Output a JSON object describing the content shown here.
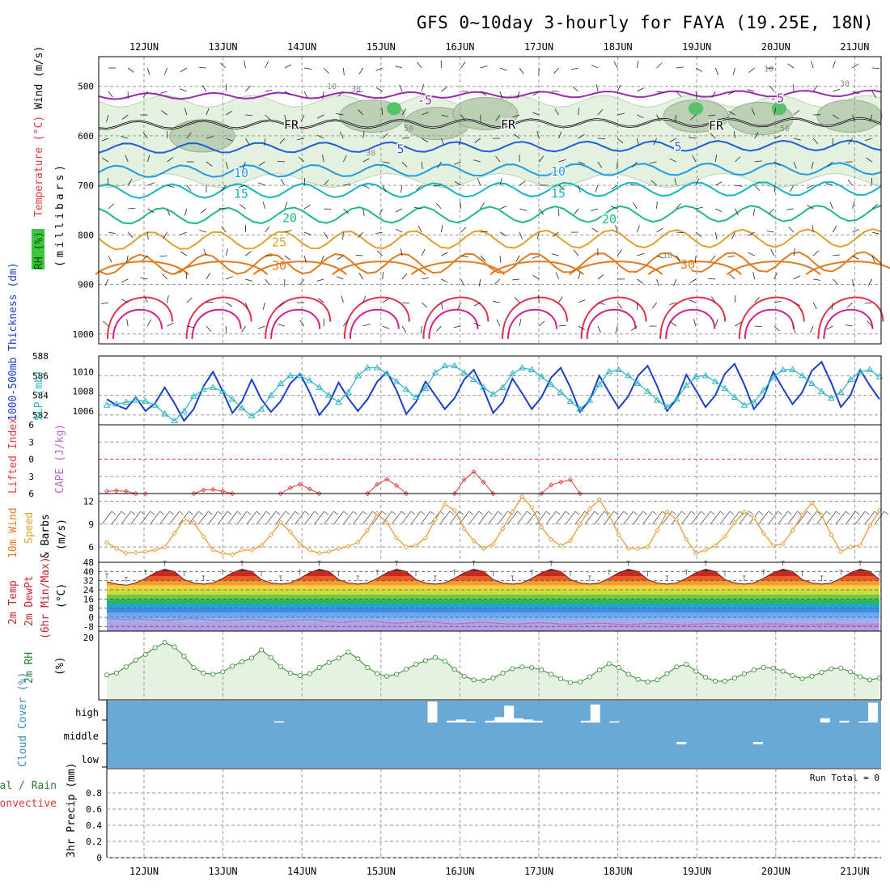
{
  "title": "GFS 0~10day 3-hourly for FAYA (19.25E, 18N)",
  "dates": [
    "12JUN",
    "13JUN",
    "14JUN",
    "15JUN",
    "16JUN",
    "17JUN",
    "18JUN",
    "19JUN",
    "20JUN",
    "21JUN"
  ],
  "run_total": "Run Total = 0",
  "chart_data": [
    {
      "panel": "upper-air",
      "type": "contour",
      "ylabel_parts": [
        {
          "text": "RH (%)",
          "color": "#2e7d32"
        },
        {
          "text": "Temperature (°C)",
          "color": "#e53935"
        },
        {
          "text": "Wind (m/s)",
          "color": "#000000"
        },
        {
          "text": "(millibars)",
          "color": "#000000"
        }
      ],
      "y_ticks": [
        500,
        600,
        700,
        800,
        900,
        1000
      ],
      "ylim": [
        440,
        1020
      ],
      "isotherm_labels": [
        "-5",
        "FR",
        "5",
        "10",
        "15",
        "20",
        "25",
        "30"
      ],
      "isotherms": [
        {
          "label": "-5",
          "level": 520,
          "color": "#9c27b0"
        },
        {
          "label": "FR",
          "level": 578,
          "color": "#000000"
        },
        {
          "label": "5",
          "level": 625,
          "color": "#1e5fd6"
        },
        {
          "label": "10",
          "level": 672,
          "color": "#1e9be3"
        },
        {
          "label": "15",
          "level": 712,
          "color": "#14b4c4"
        },
        {
          "label": "20",
          "level": 762,
          "color": "#1fb887"
        },
        {
          "label": "25",
          "level": 812,
          "color": "#e0a12a"
        },
        {
          "label": "30",
          "level": 860,
          "color": "#e07b20"
        }
      ],
      "rh_labels": [
        "10",
        "30",
        "50"
      ]
    },
    {
      "panel": "thickness-slp",
      "type": "line",
      "ylabel_left": "1000-500mb Thickness (dm)",
      "ylabel_right": "SLP (mb)",
      "left_ticks": [
        582,
        584,
        586,
        588
      ],
      "right_ticks": [
        1006,
        1008,
        1010
      ],
      "x_hours": [
        0,
        3,
        6,
        9,
        12,
        15,
        18,
        21,
        24,
        27,
        30,
        33,
        36,
        39,
        42,
        45,
        48,
        51,
        54,
        57,
        60,
        63,
        66,
        69,
        72,
        75,
        78,
        81,
        84,
        87,
        90,
        93,
        96,
        99,
        102,
        105,
        108,
        111,
        114,
        117,
        120,
        123,
        126,
        129,
        132,
        135,
        138,
        141,
        144,
        147,
        150,
        153,
        156,
        159,
        162,
        165,
        168,
        171,
        174,
        177,
        180,
        183,
        186,
        189,
        192,
        195,
        198,
        201,
        204,
        207,
        210,
        213,
        216,
        219,
        222,
        225,
        228,
        231,
        234,
        237,
        240
      ],
      "series": [
        {
          "name": "thickness",
          "color": "#1b3fc9",
          "values": [
            583.6,
            583.0,
            582.6,
            583.8,
            582.4,
            583.2,
            584.8,
            583.2,
            581.4,
            582.6,
            584.9,
            586.4,
            584.4,
            582.2,
            583.4,
            585.6,
            583.6,
            582.3,
            583.4,
            585.2,
            586.2,
            584.3,
            582.0,
            583.2,
            585.3,
            583.7,
            582.4,
            583.6,
            585.4,
            586.4,
            584.5,
            582.1,
            583.3,
            585.4,
            584.0,
            582.6,
            583.7,
            585.6,
            586.6,
            584.6,
            582.2,
            583.3,
            585.7,
            584.2,
            582.6,
            583.8,
            585.8,
            586.8,
            584.8,
            582.3,
            583.5,
            586.0,
            584.3,
            582.7,
            583.9,
            586.0,
            587.0,
            584.9,
            582.4,
            583.6,
            586.1,
            584.5,
            582.8,
            584.0,
            586.2,
            587.2,
            585.1,
            582.6,
            583.8,
            586.4,
            584.7,
            583.1,
            584.3,
            586.5,
            587.4,
            585.3,
            582.8,
            584.0,
            586.6,
            585.0,
            583.6
          ]
        },
        {
          "name": "SLP",
          "color": "#2bb5c4",
          "values": [
            1006.6,
            1006.7,
            1006.9,
            1007.1,
            1007.0,
            1006.6,
            1005.7,
            1005.0,
            1006.0,
            1007.5,
            1008.2,
            1008.4,
            1008.0,
            1007.2,
            1006.3,
            1005.5,
            1006.2,
            1007.6,
            1008.8,
            1009.6,
            1009.6,
            1009.1,
            1008.4,
            1007.6,
            1006.9,
            1007.9,
            1009.6,
            1010.4,
            1010.4,
            1009.8,
            1009.0,
            1008.2,
            1007.4,
            1008.3,
            1009.9,
            1010.6,
            1010.6,
            1009.9,
            1009.2,
            1008.4,
            1007.7,
            1008.4,
            1009.8,
            1010.4,
            1010.2,
            1009.5,
            1008.7,
            1007.9,
            1007.0,
            1006.2,
            1007.1,
            1008.7,
            1010.0,
            1010.2,
            1009.6,
            1008.8,
            1008.0,
            1007.1,
            1006.4,
            1007.2,
            1008.6,
            1009.5,
            1009.6,
            1009.0,
            1008.3,
            1007.4,
            1006.6,
            1006.9,
            1008.1,
            1009.4,
            1010.2,
            1010.2,
            1009.6,
            1008.8,
            1008.0,
            1007.3,
            1007.9,
            1009.2,
            1010.0,
            1010.2,
            1009.5
          ]
        }
      ]
    },
    {
      "panel": "lifted-index-cape",
      "type": "line",
      "ylabel_parts": [
        {
          "text": "Lifted Index",
          "color": "#e53935"
        },
        {
          "text": "CAPE (J/kg)",
          "color": "#ba68c8"
        }
      ],
      "y_ticks": [
        -6,
        -3,
        0,
        3,
        6
      ],
      "ylim": [
        -6,
        6
      ],
      "series": [
        {
          "name": "Lifted Index",
          "color": "#e53935",
          "x_hours": [
            0,
            3,
            6,
            9,
            12,
            27,
            30,
            33,
            36,
            39,
            54,
            57,
            60,
            63,
            66,
            81,
            84,
            87,
            90,
            93,
            108,
            111,
            114,
            117,
            120,
            135,
            138,
            141,
            144,
            147
          ],
          "values": [
            5.6,
            5.5,
            5.6,
            6.0,
            6.0,
            6.0,
            5.4,
            5.3,
            5.6,
            6.0,
            6.0,
            5.0,
            4.4,
            5.2,
            6.0,
            6.0,
            4.4,
            3.5,
            4.6,
            6.0,
            6.0,
            3.6,
            2.2,
            4.0,
            6.0,
            6.0,
            4.5,
            4.0,
            3.6,
            6.0
          ]
        }
      ]
    },
    {
      "panel": "10m-wind",
      "type": "line",
      "ylabel_parts": [
        {
          "text": "10m Wind",
          "color": "#e07b20"
        },
        {
          "text": "Speed",
          "color": "#e0a12a"
        },
        {
          "text": "& Barbs",
          "color": "#000000"
        },
        {
          "text": "(m/s)",
          "color": "#000000"
        }
      ],
      "y_ticks": [
        6,
        9,
        12
      ],
      "ylim": [
        4,
        13
      ],
      "series": [
        {
          "name": "wind speed",
          "color": "#e8952a",
          "values": [
            6.6,
            5.8,
            5.2,
            5.3,
            5.4,
            5.6,
            6.0,
            7.8,
            9.6,
            9.2,
            7.4,
            5.6,
            5.2,
            5.0,
            5.6,
            5.6,
            6.2,
            7.6,
            9.2,
            8.0,
            6.4,
            5.6,
            5.2,
            5.4,
            5.8,
            6.1,
            6.6,
            8.2,
            10.4,
            9.2,
            7.2,
            6.0,
            6.2,
            7.2,
            9.6,
            11.6,
            10.8,
            8.4,
            6.8,
            5.8,
            6.4,
            8.4,
            10.6,
            12.6,
            11.2,
            8.6,
            7.0,
            6.2,
            6.8,
            9.0,
            11.0,
            12.2,
            10.2,
            7.6,
            5.8,
            5.8,
            6.0,
            8.2,
            10.6,
            9.6,
            7.0,
            5.2,
            5.6,
            6.2,
            7.4,
            9.2,
            10.6,
            9.8,
            7.8,
            6.2,
            6.4,
            8.2,
            10.2,
            11.8,
            10.2,
            7.6,
            5.4,
            6.0,
            6.2,
            8.8,
            10.8
          ]
        }
      ]
    },
    {
      "panel": "2m-temp",
      "type": "area",
      "ylabel_parts": [
        {
          "text": "2m Temp",
          "color": "#c62828"
        },
        {
          "text": "2m DewPt",
          "color": "#c62828"
        },
        {
          "text": "(6hr Min/Max)",
          "color": "#c62828"
        },
        {
          "text": "(°C)",
          "color": "#000000"
        }
      ],
      "y_ticks": [
        -8,
        0,
        8,
        16,
        24,
        32,
        40,
        48
      ],
      "ylim": [
        -12,
        48
      ],
      "series": [
        {
          "name": "temperature",
          "values": [
            31,
            29,
            28,
            30,
            34,
            39,
            42,
            40,
            33,
            30,
            29,
            30,
            34,
            39,
            42,
            40,
            33,
            30,
            29,
            30,
            34,
            39,
            42,
            40,
            33,
            30,
            29,
            30,
            34,
            39,
            42,
            40,
            33,
            30,
            29,
            30,
            34,
            39,
            42,
            40,
            33,
            30,
            29,
            30,
            34,
            39,
            42,
            40,
            33,
            30,
            29,
            30,
            34,
            39,
            42,
            40,
            33,
            30,
            29,
            30,
            34,
            39,
            42,
            40,
            33,
            30,
            29,
            30,
            34,
            39,
            42,
            40,
            33,
            30,
            29,
            30,
            34,
            39,
            42,
            40,
            33
          ]
        },
        {
          "name": "dewpoint",
          "values": [
            -1.0,
            -1.5,
            -2.0,
            -1.2,
            -1.8,
            -2.5,
            -3.0,
            -2.0,
            -1.5,
            -1.0,
            -1.8,
            -2.6,
            -3.2,
            -2.6,
            -2.0,
            -1.6,
            -2.2,
            -3.0,
            -3.6,
            -3.0,
            -2.4,
            -2.0,
            -2.6,
            -3.6,
            -4.4,
            -4.0,
            -3.4,
            -3.0,
            -3.6,
            -4.6,
            -5.2,
            -4.8,
            -4.0,
            -3.6,
            -4.2,
            -5.2,
            -5.8,
            -5.4,
            -4.6,
            -4.2,
            -4.8,
            -5.6,
            -6.0,
            -5.6,
            -5.0,
            -4.6,
            -5.2,
            -6.0,
            -6.2,
            -5.8,
            -5.2,
            -5.0,
            -5.6,
            -6.2,
            -6.4,
            -6.0,
            -5.4,
            -5.2,
            -5.8,
            -6.4,
            -6.6,
            -6.0,
            -5.6,
            -5.4,
            -6.0,
            -6.6,
            -6.8,
            -6.2,
            -5.8,
            -5.6,
            -6.2,
            -6.8,
            -7.0,
            -6.4,
            -6.0,
            -5.8,
            -6.4,
            -7.0,
            -7.0,
            -6.6,
            -6.2
          ]
        }
      ]
    },
    {
      "panel": "2m-rh",
      "type": "area",
      "ylabel_parts": [
        {
          "text": "2m RH",
          "color": "#2e7d32"
        },
        {
          "text": "(%)",
          "color": "#000000"
        }
      ],
      "y_ticks": [
        20
      ],
      "ylim": [
        0,
        20
      ],
      "series": [
        {
          "name": "2m RH",
          "color": "#2e8b2e",
          "values": [
            8.0,
            8.6,
            10.6,
            12.8,
            14.6,
            16.8,
            18.4,
            17.0,
            14.0,
            10.4,
            8.6,
            8.2,
            9.0,
            10.8,
            12.2,
            13.4,
            16.0,
            13.6,
            10.6,
            8.6,
            7.8,
            8.4,
            10.4,
            12.0,
            13.4,
            15.4,
            13.2,
            10.4,
            8.4,
            7.6,
            8.2,
            9.8,
            11.4,
            12.6,
            13.6,
            12.4,
            9.8,
            7.6,
            6.4,
            6.2,
            7.0,
            8.6,
            10.0,
            10.6,
            10.4,
            9.6,
            8.2,
            6.8,
            5.6,
            5.8,
            7.4,
            9.6,
            11.6,
            10.4,
            8.2,
            6.6,
            5.8,
            6.4,
            8.4,
            10.6,
            11.4,
            9.2,
            7.2,
            6.0,
            6.0,
            7.0,
            8.4,
            9.6,
            10.4,
            10.2,
            9.2,
            7.8,
            6.8,
            7.6,
            8.8,
            10.0,
            10.2,
            9.0,
            7.4,
            6.4,
            7.0
          ]
        }
      ]
    },
    {
      "panel": "cloud-cover",
      "type": "bar",
      "ylabel": "Cloud Cover (%)",
      "y_ticks": [
        "high",
        "middle",
        "low"
      ],
      "high_bars": [
        {
          "x_hour": 54,
          "pct": 2
        },
        {
          "x_hour": 102,
          "pct": 35
        },
        {
          "x_hour": 108,
          "pct": 3
        },
        {
          "x_hour": 111,
          "pct": 5
        },
        {
          "x_hour": 114,
          "pct": 2
        },
        {
          "x_hour": 120,
          "pct": 3
        },
        {
          "x_hour": 123,
          "pct": 9
        },
        {
          "x_hour": 126,
          "pct": 28
        },
        {
          "x_hour": 129,
          "pct": 7
        },
        {
          "x_hour": 132,
          "pct": 5
        },
        {
          "x_hour": 135,
          "pct": 3
        },
        {
          "x_hour": 150,
          "pct": 3
        },
        {
          "x_hour": 153,
          "pct": 30
        },
        {
          "x_hour": 159,
          "pct": 2
        },
        {
          "x_hour": 225,
          "pct": 7
        },
        {
          "x_hour": 231,
          "pct": 3
        },
        {
          "x_hour": 237,
          "pct": 2
        },
        {
          "x_hour": 240,
          "pct": 33
        }
      ],
      "middle_bars": [
        {
          "x_hour": 180,
          "pct": 4
        },
        {
          "x_hour": 204,
          "pct": 4
        }
      ]
    },
    {
      "panel": "precip",
      "type": "bar",
      "ylabel_parts": [
        {
          "text": "Total / Rain",
          "color": "#2e7d32"
        },
        {
          "text": "Convective",
          "color": "#e53935"
        },
        {
          "text": "3hr Precip (mm)",
          "color": "#000000"
        }
      ],
      "y_ticks": [
        0,
        0.2,
        0.4,
        0.6,
        0.8
      ],
      "ylim": [
        0,
        1
      ],
      "values": []
    }
  ]
}
